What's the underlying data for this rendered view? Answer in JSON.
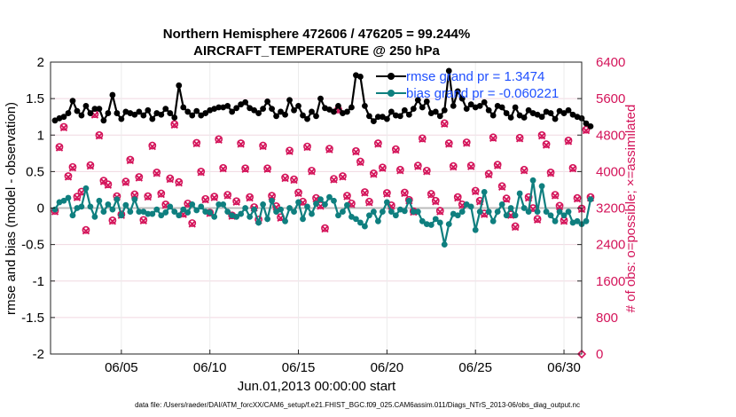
{
  "chart_data": {
    "type": "line",
    "title": "Northern Hemisphere 472606 / 476205 = 99.244%",
    "subtitle": "AIRCRAFT_TEMPERATURE @ 250 hPa",
    "xlabel": "Jun.01,2013 00:00:00 start",
    "ylabel_left": "rmse and bias (model - observation)",
    "ylabel_right": "# of obs: o=possible; ×=assimilated",
    "footer": "data file: /Users/raeder/DAI/ATM_forcXX/CAM6_setup/f.e21.FHIST_BGC.f09_025.CAM6assim.011/Diags_NTrS_2013-06/obs_diag_output.nc",
    "x_range": [
      1,
      31
    ],
    "x_ticks": [
      5,
      10,
      15,
      20,
      25,
      30
    ],
    "x_tick_labels": [
      "06/05",
      "06/10",
      "06/15",
      "06/20",
      "06/25",
      "06/30"
    ],
    "ylim_left": [
      -2,
      2
    ],
    "y_ticks_left": [
      -2,
      -1.5,
      -1,
      -0.5,
      0,
      0.5,
      1,
      1.5,
      2
    ],
    "y_tick_labels_left": [
      "-2",
      "-1.5",
      "-1",
      "-0.5",
      "0",
      "0.5",
      "1",
      "1.5",
      "2"
    ],
    "ylim_right": [
      0,
      6400
    ],
    "y_ticks_right": [
      0,
      800,
      1600,
      2400,
      3200,
      4000,
      4800,
      5600,
      6400
    ],
    "y_tick_labels_right": [
      "0",
      "800",
      "1600",
      "2400",
      "3200",
      "4000",
      "4800",
      "5600",
      "6400"
    ],
    "legend_position": "top-right",
    "series": [
      {
        "name": "rmse",
        "legend": "rmse grand pr = 1.3474",
        "color": "#000000",
        "axis": "left",
        "values": [
          1.2,
          1.23,
          1.25,
          1.3,
          1.47,
          1.33,
          1.27,
          1.4,
          1.3,
          1.36,
          1.36,
          1.2,
          1.3,
          1.55,
          1.3,
          1.22,
          1.32,
          1.3,
          1.28,
          1.32,
          1.27,
          1.34,
          1.22,
          1.3,
          1.28,
          1.36,
          1.3,
          1.24,
          1.68,
          1.38,
          1.32,
          1.27,
          1.33,
          1.27,
          1.3,
          1.34,
          1.36,
          1.38,
          1.38,
          1.4,
          1.32,
          1.37,
          1.42,
          1.45,
          1.37,
          1.34,
          1.3,
          1.36,
          1.46,
          1.36,
          1.26,
          1.32,
          1.28,
          1.48,
          1.34,
          1.4,
          1.27,
          1.22,
          1.32,
          1.26,
          1.5,
          1.37,
          1.35,
          1.32,
          1.4,
          1.3,
          1.32,
          1.38,
          1.82,
          1.8,
          1.4,
          1.26,
          1.19,
          1.25,
          1.25,
          1.22,
          1.32,
          1.27,
          1.26,
          1.34,
          1.28,
          1.36,
          1.48,
          1.38,
          1.46,
          1.3,
          1.32,
          1.26,
          1.34,
          1.88,
          1.4,
          1.6,
          1.5,
          1.36,
          1.42,
          1.38,
          1.4,
          1.45,
          1.34,
          1.27,
          1.4,
          1.38,
          1.3,
          1.24,
          1.38,
          1.27,
          1.24,
          1.34,
          1.3,
          1.28,
          1.25,
          1.32,
          1.3,
          1.22,
          1.33,
          1.3,
          1.34,
          1.28,
          1.25,
          1.23,
          1.16,
          1.12
        ]
      },
      {
        "name": "bias",
        "legend": "bias grand pr = -0.060221",
        "color": "#0f7f7f",
        "axis": "left",
        "values": [
          -0.02,
          0.08,
          0.1,
          0.14,
          -0.1,
          0.0,
          0.02,
          0.27,
          0.02,
          -0.12,
          0.1,
          -0.05,
          0.05,
          -0.02,
          0.12,
          -0.1,
          0.04,
          -0.05,
          0.12,
          -0.05,
          -0.05,
          -0.08,
          -0.08,
          -0.02,
          -0.1,
          -0.06,
          0.02,
          -0.05,
          -0.1,
          -0.02,
          -0.06,
          0.05,
          -0.03,
          0.02,
          -0.05,
          -0.06,
          -0.12,
          0.05,
          0.05,
          -0.05,
          -0.1,
          -0.12,
          -0.08,
          0.0,
          -0.12,
          -0.02,
          -0.2,
          0.05,
          -0.15,
          0.1,
          -0.05,
          -0.02,
          -0.18,
          0.0,
          -0.05,
          0.08,
          -0.15,
          0.02,
          -0.08,
          0.06,
          0.12,
          0.05,
          0.15,
          0.1,
          -0.1,
          -0.05,
          0.04,
          -0.12,
          -0.15,
          -0.2,
          -0.25,
          -0.1,
          -0.05,
          -0.18,
          -0.05,
          0.08,
          -0.05,
          -0.1,
          -0.02,
          -0.04,
          0.1,
          -0.05,
          -0.05,
          -0.18,
          -0.22,
          -0.23,
          -0.15,
          -0.2,
          -0.5,
          -0.22,
          -0.08,
          -0.1,
          -0.05,
          0.05,
          0.02,
          -0.3,
          -0.05,
          0.22,
          -0.05,
          -0.18,
          -0.05,
          0.05,
          -0.1,
          0.0,
          -0.1,
          0.2,
          0.0,
          -0.05,
          0.38,
          -0.05,
          0.3,
          -0.05,
          -0.1,
          -0.18,
          -0.05,
          -0.1,
          -0.05,
          -0.2,
          -0.18,
          -0.22,
          -0.18,
          0.12
        ]
      },
      {
        "name": "obs_possible",
        "legend": "",
        "color": "#d4145a",
        "axis": "right",
        "values": [
          3140,
          4540,
          4980,
          3900,
          4100,
          3450,
          3560,
          2720,
          4140,
          5260,
          4800,
          3800,
          3720,
          2930,
          3460,
          3060,
          3780,
          4260,
          3500,
          3880,
          2940,
          3460,
          4570,
          3980,
          3520,
          3280,
          3850,
          5040,
          3770,
          3080,
          3300,
          2870,
          4630,
          4000,
          3400,
          3100,
          3450,
          4710,
          4080,
          3490,
          3040,
          3350,
          4620,
          4070,
          3440,
          3220,
          2950,
          4570,
          4070,
          3470,
          3240,
          3000,
          3870,
          4460,
          3830,
          3540,
          3340,
          4550,
          4020,
          3420,
          3260,
          2760,
          4500,
          3840,
          5360,
          3900,
          3470,
          3300,
          4450,
          4220,
          3550,
          3340,
          3960,
          4620,
          4090,
          3530,
          3260,
          4490,
          4040,
          3540,
          3380,
          3130,
          4130,
          4730,
          4020,
          3510,
          3360,
          3140,
          5060,
          4620,
          4120,
          3440,
          3280,
          4640,
          4130,
          3580,
          3360,
          3080,
          3950,
          4750,
          4150,
          3680,
          3410,
          3060,
          2800,
          4740,
          4040,
          3440,
          3200,
          2960,
          4800,
          4600,
          3980,
          3490,
          3250,
          2930,
          4680,
          4080,
          3420,
          3190,
          4920,
          3440
        ]
      },
      {
        "name": "obs_assimilated",
        "legend": "",
        "color": "#d4145a",
        "axis": "right",
        "values": [
          3120,
          4520,
          4960,
          3880,
          4080,
          3430,
          3540,
          2700,
          4120,
          5240,
          4780,
          3780,
          3700,
          2910,
          3440,
          3040,
          3760,
          4240,
          3480,
          3860,
          2920,
          3440,
          4550,
          3960,
          3500,
          3260,
          3830,
          5020,
          3750,
          3060,
          3280,
          2850,
          4610,
          3980,
          3380,
          3080,
          3430,
          4690,
          4060,
          3470,
          3020,
          3330,
          4600,
          4050,
          3420,
          3200,
          2930,
          4550,
          4050,
          3450,
          3220,
          2980,
          3850,
          4440,
          3810,
          3520,
          3320,
          4530,
          4000,
          3400,
          3240,
          2740,
          4480,
          3820,
          5340,
          3880,
          3450,
          3280,
          4430,
          4200,
          3530,
          3320,
          3940,
          4600,
          4070,
          3510,
          3240,
          4470,
          4020,
          3520,
          3360,
          3110,
          4110,
          4710,
          4000,
          3490,
          3340,
          3120,
          5040,
          4600,
          4100,
          3420,
          3260,
          4620,
          4110,
          3560,
          3340,
          3060,
          3930,
          4730,
          4130,
          3660,
          3390,
          3040,
          2780,
          4720,
          4020,
          3420,
          3180,
          2940,
          4780,
          4580,
          3960,
          3470,
          3230,
          2910,
          4660,
          4060,
          3400,
          3170,
          4900,
          3420
        ]
      }
    ],
    "last_point_note": "final possible-obs marker at 0 on right axis, x=31"
  }
}
